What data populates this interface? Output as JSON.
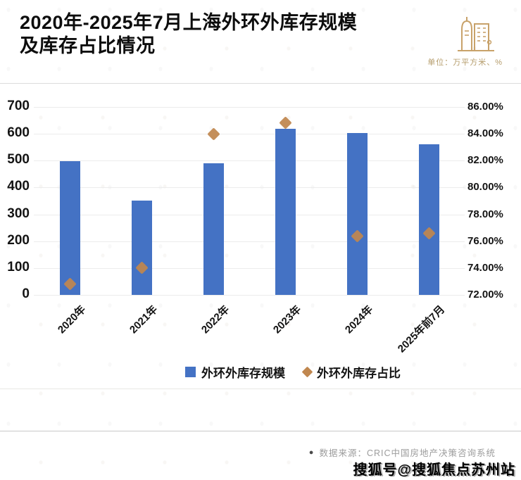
{
  "header": {
    "title_line1": "2020年-2025年7月上海外环外库存规模",
    "title_line2": "及库存占比情况",
    "unit_label": "单位：万平方米、%",
    "logo_icon": "building-icon",
    "logo_color": "#c8a26a"
  },
  "chart_data": {
    "type": "bar",
    "title": "2020年-2025年7月上海外环外库存规模及库存占比情况",
    "categories": [
      "2020年",
      "2021年",
      "2022年",
      "2023年",
      "2024年",
      "2025年前7月"
    ],
    "series": [
      {
        "name": "外环外库存规模",
        "type": "bar",
        "axis": "left",
        "color": "#4472c4",
        "values": [
          497,
          352,
          489,
          620,
          603,
          560
        ]
      },
      {
        "name": "外环外库存占比",
        "type": "scatter",
        "marker": "diamond",
        "axis": "right",
        "color": "#c0874f",
        "values": [
          72.8,
          74.0,
          84.0,
          84.8,
          76.4,
          76.6
        ]
      }
    ],
    "left_axis": {
      "min": 0,
      "max": 700,
      "step": 100,
      "ticks": [
        "0",
        "100",
        "200",
        "300",
        "400",
        "500",
        "600",
        "700"
      ]
    },
    "right_axis": {
      "min": 72,
      "max": 86,
      "step": 2,
      "ticks": [
        "72.00%",
        "74.00%",
        "76.00%",
        "78.00%",
        "80.00%",
        "82.00%",
        "84.00%",
        "86.00%"
      ]
    },
    "grid": true,
    "legend_position": "bottom",
    "unit": "万平方米、%"
  },
  "footer": {
    "source_bullet": "●",
    "source_text": "数据来源：CRIC中国房地产决策咨询系统",
    "watermark_text": "搜狐号@搜狐焦点苏州站"
  }
}
